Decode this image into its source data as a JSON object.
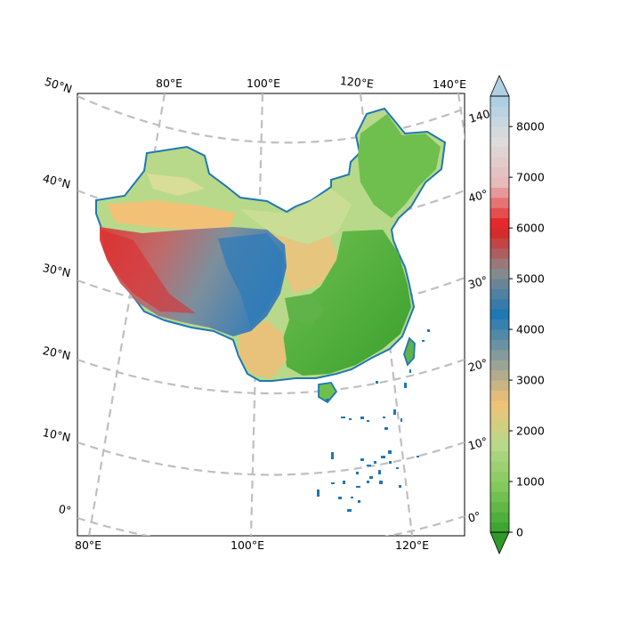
{
  "map": {
    "top_lon_labels": [
      "80°E",
      "100°E",
      "120°E",
      "140°E"
    ],
    "bottom_lon_labels": [
      "80°E",
      "100°E",
      "120°E"
    ],
    "left_lat_labels": [
      "50°N",
      "40°N",
      "30°N",
      "20°N",
      "10°N",
      "0°"
    ],
    "right_lat_labels": [
      "140",
      "40°",
      "30°",
      "20°",
      "10°",
      "0°"
    ],
    "gridline_color": "#bfbfbf",
    "border_color": "#1f77b4"
  },
  "colorbar": {
    "tick_labels": [
      "0",
      "1000",
      "2000",
      "3000",
      "4000",
      "5000",
      "6000",
      "7000",
      "8000"
    ],
    "ticks": [
      0,
      1000,
      2000,
      3000,
      4000,
      5000,
      6000,
      7000,
      8000
    ],
    "vmin": 0,
    "vmax": 8600,
    "extend": "both",
    "colormap_stops": [
      "#37a02c",
      "#7fc75a",
      "#b8d98a",
      "#f2c176",
      "#8a9e9a",
      "#1f77b4",
      "#8a8a8a",
      "#e31a1c",
      "#e8b9b9",
      "#dddddd",
      "#a6cee3"
    ]
  }
}
